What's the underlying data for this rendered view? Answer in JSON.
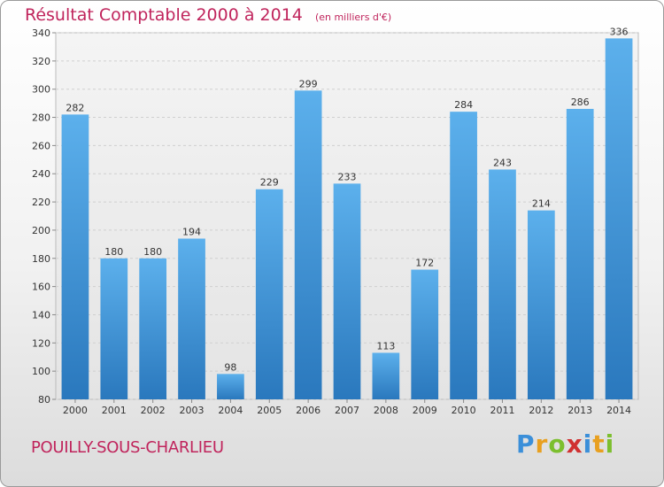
{
  "header": {
    "title": "Résultat Comptable 2000 à 2014",
    "unit": "(en milliers d'€)"
  },
  "footer": {
    "city": "POUILLY-SOUS-CHARLIEU",
    "logo": [
      "P",
      "r",
      "o",
      "x",
      "i",
      "t",
      "i"
    ],
    "logo_colors": [
      "#3b8fd9",
      "#e8a020",
      "#7cbf2e",
      "#d03030",
      "#3b8fd9",
      "#e8a020",
      "#7cbf2e"
    ]
  },
  "chart_data": {
    "type": "bar",
    "categories": [
      "2000",
      "2001",
      "2002",
      "2003",
      "2004",
      "2005",
      "2006",
      "2007",
      "2008",
      "2009",
      "2010",
      "2011",
      "2012",
      "2013",
      "2014"
    ],
    "values": [
      282,
      180,
      180,
      194,
      98,
      229,
      299,
      233,
      113,
      172,
      284,
      243,
      214,
      286,
      336
    ],
    "title": "Résultat Comptable 2000 à 2014",
    "xlabel": "",
    "ylabel": "",
    "ylim": [
      80,
      340
    ],
    "yticks": [
      80,
      100,
      120,
      140,
      160,
      180,
      200,
      220,
      240,
      260,
      280,
      300,
      320,
      340
    ],
    "grid": true,
    "bar_color": "#4a9fe0"
  }
}
